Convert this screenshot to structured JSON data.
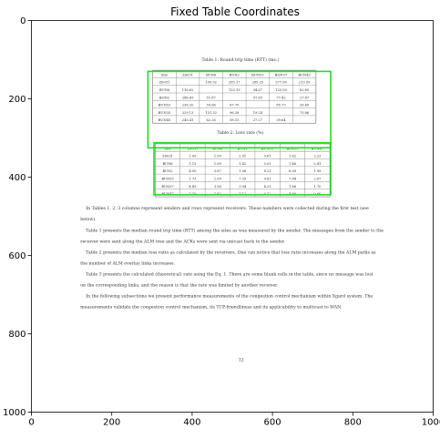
{
  "figure": {
    "title": "Fixed Table Coordinates"
  },
  "chart_data": {
    "type": "table",
    "title": "Fixed Table Coordinates",
    "xlim": [
      0,
      1000
    ],
    "ylim": [
      1000,
      0
    ],
    "x_ticks": [
      0,
      200,
      400,
      600,
      800,
      1000
    ],
    "y_ticks": [
      0,
      200,
      400,
      600,
      800,
      1000
    ],
    "grid": false,
    "highlight_color": "#22dd22",
    "boxes": [
      {
        "name": "table-1",
        "x0": 290,
        "y0": 130,
        "x1": 745,
        "y1": 325
      },
      {
        "name": "table-2",
        "x0": 305,
        "y0": 312,
        "x1": 745,
        "y1": 445
      }
    ]
  },
  "document": {
    "table1_caption": "Table 1: Round trip time (RTT) (ms.)",
    "table1": {
      "header": [
        "Site",
        "ZS031",
        "BUN6",
        "BUN2",
        "BUN53",
        "BON37",
        "BUN45"
      ],
      "rows": [
        [
          "ZS031",
          "",
          "109.92",
          "285.17",
          "285.25",
          "277.99",
          "213.99"
        ],
        [
          "BUN6",
          "118.62",
          "",
          "125.19",
          "34.67",
          "125.59",
          "82.85"
        ],
        [
          "BON2",
          "286.69",
          "51.87",
          "",
          "57.65",
          "77.42",
          "27.87"
        ],
        [
          "BUN53",
          "236.20",
          "59.66",
          "67.70",
          "",
          "85.73",
          "26.69"
        ],
        [
          "BUN35",
          "229.13",
          "151.32",
          "96.28",
          "19.24",
          "",
          "75.86"
        ],
        [
          "BUN45",
          "245.41",
          "62.28",
          "58.15",
          "27.27",
          "39.64",
          ""
        ]
      ]
    },
    "table2_caption": "Table 2: Loss rate (%)",
    "table2": {
      "header": [
        "Site",
        "ZS031",
        "BUN6",
        "BUN2",
        "BUN53",
        "BON35",
        "BUN47"
      ],
      "rows": [
        [
          "ZS031",
          "1.09",
          "1.09",
          "2.91",
          "0.61",
          "1.62",
          "2.23"
        ],
        [
          "BUN6",
          "1.13",
          "1.09",
          "1.42",
          "0.01",
          "1.46",
          "2.41"
        ],
        [
          "BUN2",
          "4.50",
          "3.87",
          "1.06",
          "8.21",
          "6.30",
          "1.99"
        ],
        [
          "BUN53",
          "1.73",
          "1.09",
          "7.33",
          "0.61",
          "7.84",
          "2.67"
        ],
        [
          "BUN37",
          "4.89",
          "3.56",
          "3.04",
          "4.21",
          "1.66",
          "1.70"
        ],
        [
          "BUN47",
          "1.10",
          "1.82",
          "1.12",
          "0.12",
          "4.80",
          "0.60"
        ]
      ]
    },
    "paragraphs": [
      "In Tables 1, 2, 3 columns represent senders and rows represent receivers. These numbers were collected during the first test (see below).",
      "Table 1 presents the median round trip time (RTT) among the sites as was measured by the sender. The messages from the sender to the receiver were sent along the ALM tree and the ACKs were sent via unicast back to the sender.",
      "Table 2 presents the median loss ratio as calculated by the receivers. One can notice that loss ratio increases along the ALM paths as the number of ALM overlay links increases.",
      "Table 3 presents the calculated (theoretical) rate using the Eq. 1. There are some blank cells in the table, since no message was lost on the corresponding links, and the reason is that the rate was limited by another receiver.",
      "In the following subsections we present performance measurements of the congestion control mechanism within Xgard system. The measurements validate the congestion control mechanism, its TCP-friendliness and its applicability to multicast to WAN."
    ],
    "page_number": "12"
  }
}
